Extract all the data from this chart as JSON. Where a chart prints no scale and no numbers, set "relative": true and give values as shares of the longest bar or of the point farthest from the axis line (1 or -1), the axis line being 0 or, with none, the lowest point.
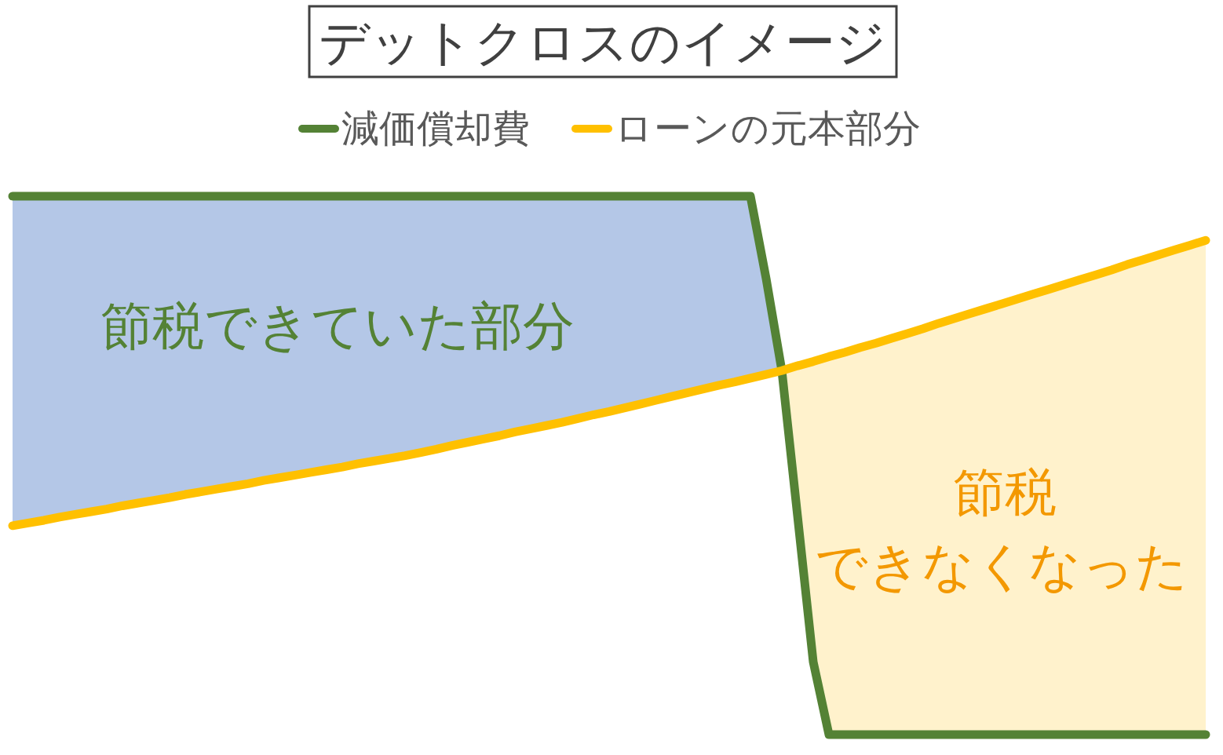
{
  "chart_data": {
    "type": "line",
    "title": "デットクロスのイメージ",
    "relative": true,
    "legend": "top",
    "marker": "none",
    "line_style": "solid",
    "categories": [
      null,
      null,
      null,
      null,
      null,
      null,
      null,
      null,
      null,
      null,
      null,
      null,
      null,
      null,
      null,
      null,
      null,
      null,
      null,
      null,
      null,
      null,
      null,
      null,
      null,
      null,
      null,
      null,
      null,
      null,
      null,
      null,
      null,
      null,
      null,
      null,
      null,
      null,
      null,
      null,
      null,
      null,
      null,
      null,
      null,
      null,
      null,
      null,
      null,
      null,
      null,
      null,
      null,
      null,
      null,
      null,
      null,
      null,
      null,
      null,
      null,
      null,
      null,
      null,
      null,
      null,
      null,
      null,
      null,
      null,
      null,
      null,
      null,
      null,
      null,
      null,
      null
    ],
    "series": [
      {
        "name": "減価償却費",
        "color": "#548235",
        "values": [
          1,
          1,
          1,
          1,
          1,
          1,
          1,
          1,
          1,
          1,
          1,
          1,
          1,
          1,
          1,
          1,
          1,
          1,
          1,
          1,
          1,
          1,
          1,
          1,
          1,
          1,
          1,
          1,
          1,
          1,
          1,
          1,
          1,
          1,
          1,
          1,
          1,
          1,
          1,
          1,
          1,
          1,
          1,
          1,
          1,
          1,
          1,
          1,
          0.847,
          0.676,
          0.406,
          0.135,
          0,
          0,
          0,
          0,
          0,
          0,
          0,
          0,
          0,
          0,
          0,
          0,
          0,
          0,
          0,
          0,
          0,
          0,
          0,
          0,
          0,
          0,
          0,
          0,
          0
        ]
      },
      {
        "name": "ローンの元本部分",
        "color": "#ffc000",
        "values": [
          0.388,
          0.393,
          0.398,
          0.404,
          0.409,
          0.414,
          0.419,
          0.425,
          0.43,
          0.435,
          0.44,
          0.446,
          0.451,
          0.456,
          0.461,
          0.466,
          0.472,
          0.477,
          0.482,
          0.487,
          0.492,
          0.497,
          0.503,
          0.508,
          0.513,
          0.518,
          0.524,
          0.53,
          0.537,
          0.543,
          0.549,
          0.555,
          0.562,
          0.568,
          0.574,
          0.58,
          0.587,
          0.594,
          0.6,
          0.607,
          0.614,
          0.621,
          0.628,
          0.635,
          0.642,
          0.649,
          0.655,
          0.662,
          0.669,
          0.676,
          0.685,
          0.693,
          0.702,
          0.71,
          0.719,
          0.727,
          0.736,
          0.745,
          0.754,
          0.764,
          0.773,
          0.782,
          0.791,
          0.8,
          0.809,
          0.818,
          0.827,
          0.836,
          0.845,
          0.854,
          0.863,
          0.873,
          0.882,
          0.891,
          0.9,
          0.909,
          0.918
        ]
      },
      {
        "type": "area",
        "color": "#b4c7e7",
        "values": [
          1,
          1,
          1,
          1,
          1,
          1,
          1,
          1,
          1,
          1,
          1,
          1,
          1,
          1,
          1,
          1,
          1,
          1,
          1,
          1,
          1,
          1,
          1,
          1,
          1,
          1,
          1,
          1,
          1,
          1,
          1,
          1,
          1,
          1,
          1,
          1,
          1,
          1,
          1,
          1,
          1,
          1,
          1,
          1,
          1,
          1,
          1,
          1,
          0.847,
          0.676,
          null,
          null,
          null,
          null,
          null,
          null,
          null,
          null,
          null,
          null,
          null,
          null,
          null,
          null,
          null,
          null,
          null,
          null,
          null,
          null,
          null,
          null,
          null,
          null,
          null,
          null,
          null
        ]
      },
      {
        "type": "area",
        "color": "#fff2cc",
        "values": [
          null,
          null,
          null,
          null,
          null,
          null,
          null,
          null,
          null,
          null,
          null,
          null,
          null,
          null,
          null,
          null,
          null,
          null,
          null,
          null,
          null,
          null,
          null,
          null,
          null,
          null,
          null,
          null,
          null,
          null,
          null,
          null,
          null,
          null,
          null,
          null,
          null,
          null,
          null,
          null,
          null,
          null,
          null,
          null,
          null,
          null,
          null,
          null,
          null,
          0.676,
          0.685,
          0.693,
          0.702,
          0.71,
          0.719,
          0.727,
          0.736,
          0.745,
          0.754,
          0.764,
          0.773,
          0.782,
          0.791,
          0.8,
          0.809,
          0.818,
          0.827,
          0.836,
          0.845,
          0.854,
          0.863,
          0.873,
          0.882,
          0.891,
          0.9,
          0.909,
          0.918
        ]
      }
    ],
    "annotations": [
      "節税できていた部分",
      "節税",
      "できなくなった"
    ]
  }
}
